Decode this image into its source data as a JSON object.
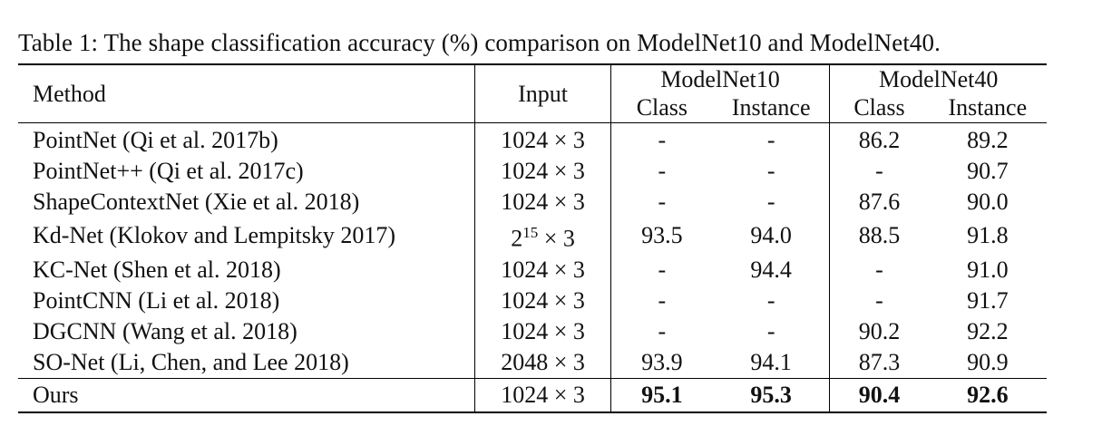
{
  "caption": "Table 1: The shape classification accuracy (%) comparison on ModelNet10 and ModelNet40.",
  "headers": {
    "method": "Method",
    "input": "Input",
    "group1": "ModelNet10",
    "group2": "ModelNet40",
    "class": "Class",
    "instance": "Instance"
  },
  "rows": [
    {
      "method": "PointNet (Qi et al. 2017b)",
      "input": "1024 × 3",
      "mn10_class": "-",
      "mn10_instance": "-",
      "mn40_class": "86.2",
      "mn40_instance": "89.2"
    },
    {
      "method": "PointNet++ (Qi et al. 2017c)",
      "input": "1024 × 3",
      "mn10_class": "-",
      "mn10_instance": "-",
      "mn40_class": "-",
      "mn40_instance": "90.7"
    },
    {
      "method": "ShapeContextNet (Xie et al. 2018)",
      "input": "1024 × 3",
      "mn10_class": "-",
      "mn10_instance": "-",
      "mn40_class": "87.6",
      "mn40_instance": "90.0"
    },
    {
      "method": "Kd-Net (Klokov and Lempitsky 2017)",
      "input_base": "2",
      "input_exp": "15",
      "input_tail": " × 3",
      "mn10_class": "93.5",
      "mn10_instance": "94.0",
      "mn40_class": "88.5",
      "mn40_instance": "91.8"
    },
    {
      "method": "KC-Net (Shen et al. 2018)",
      "input": "1024 × 3",
      "mn10_class": "-",
      "mn10_instance": "94.4",
      "mn40_class": "-",
      "mn40_instance": "91.0"
    },
    {
      "method": "PointCNN (Li et al. 2018)",
      "input": "1024 × 3",
      "mn10_class": "-",
      "mn10_instance": "-",
      "mn40_class": "-",
      "mn40_instance": "91.7"
    },
    {
      "method": "DGCNN (Wang et al. 2018)",
      "input": "1024 × 3",
      "mn10_class": "-",
      "mn10_instance": "-",
      "mn40_class": "90.2",
      "mn40_instance": "92.2"
    },
    {
      "method": "SO-Net (Li, Chen, and Lee 2018)",
      "input": "2048 × 3",
      "mn10_class": "93.9",
      "mn10_instance": "94.1",
      "mn40_class": "87.3",
      "mn40_instance": "90.9"
    }
  ],
  "ours": {
    "method": "Ours",
    "input": "1024 × 3",
    "mn10_class": "95.1",
    "mn10_instance": "95.3",
    "mn40_class": "90.4",
    "mn40_instance": "92.6"
  }
}
